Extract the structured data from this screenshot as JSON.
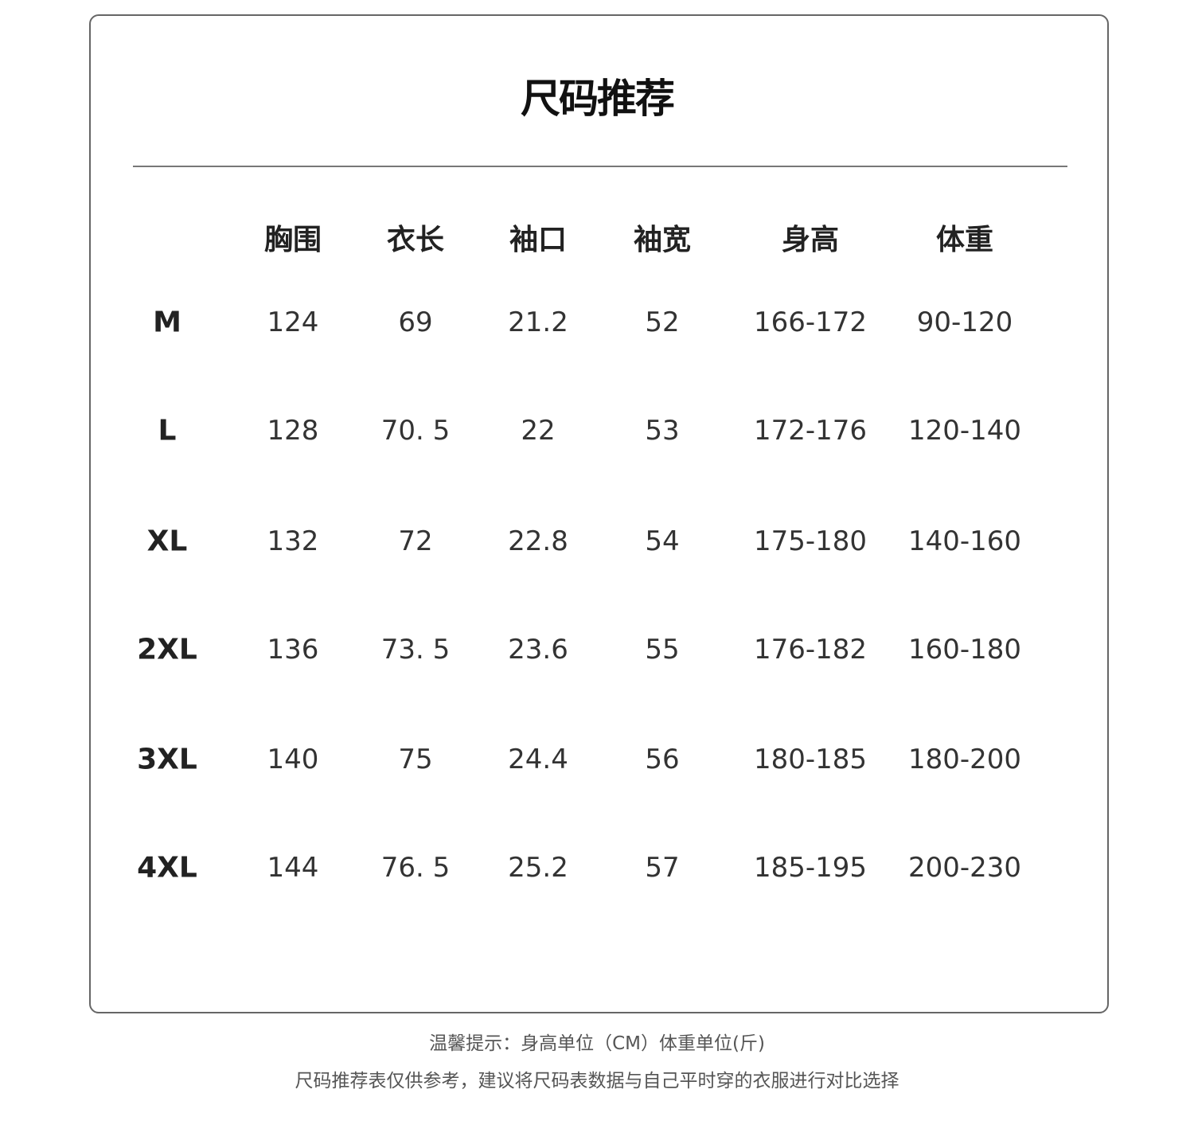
{
  "title": "尺码推荐",
  "table": {
    "headers": [
      "",
      "胸围",
      "衣长",
      "袖口",
      "袖宽",
      "身高",
      "体重"
    ],
    "rows": [
      [
        "M",
        "124",
        "69",
        "21.2",
        "52",
        "166-172",
        "90-120"
      ],
      [
        "L",
        "128",
        "70. 5",
        "22",
        "53",
        "172-176",
        "120-140"
      ],
      [
        "XL",
        "132",
        "72",
        "22.8",
        "54",
        "175-180",
        "140-160"
      ],
      [
        "2XL",
        "136",
        "73. 5",
        "23.6",
        "55",
        "176-182",
        "160-180"
      ],
      [
        "3XL",
        "140",
        "75",
        "24.4",
        "56",
        "180-185",
        "180-200"
      ],
      [
        "4XL",
        "144",
        "76. 5",
        "25.2",
        "57",
        "185-195",
        "200-230"
      ]
    ]
  },
  "notes": {
    "line1": "温馨提示：身高单位（CM）体重单位(斤)",
    "line2": "尺码推荐表仅供参考，建议将尺码表数据与自己平时穿的衣服进行对比选择"
  }
}
